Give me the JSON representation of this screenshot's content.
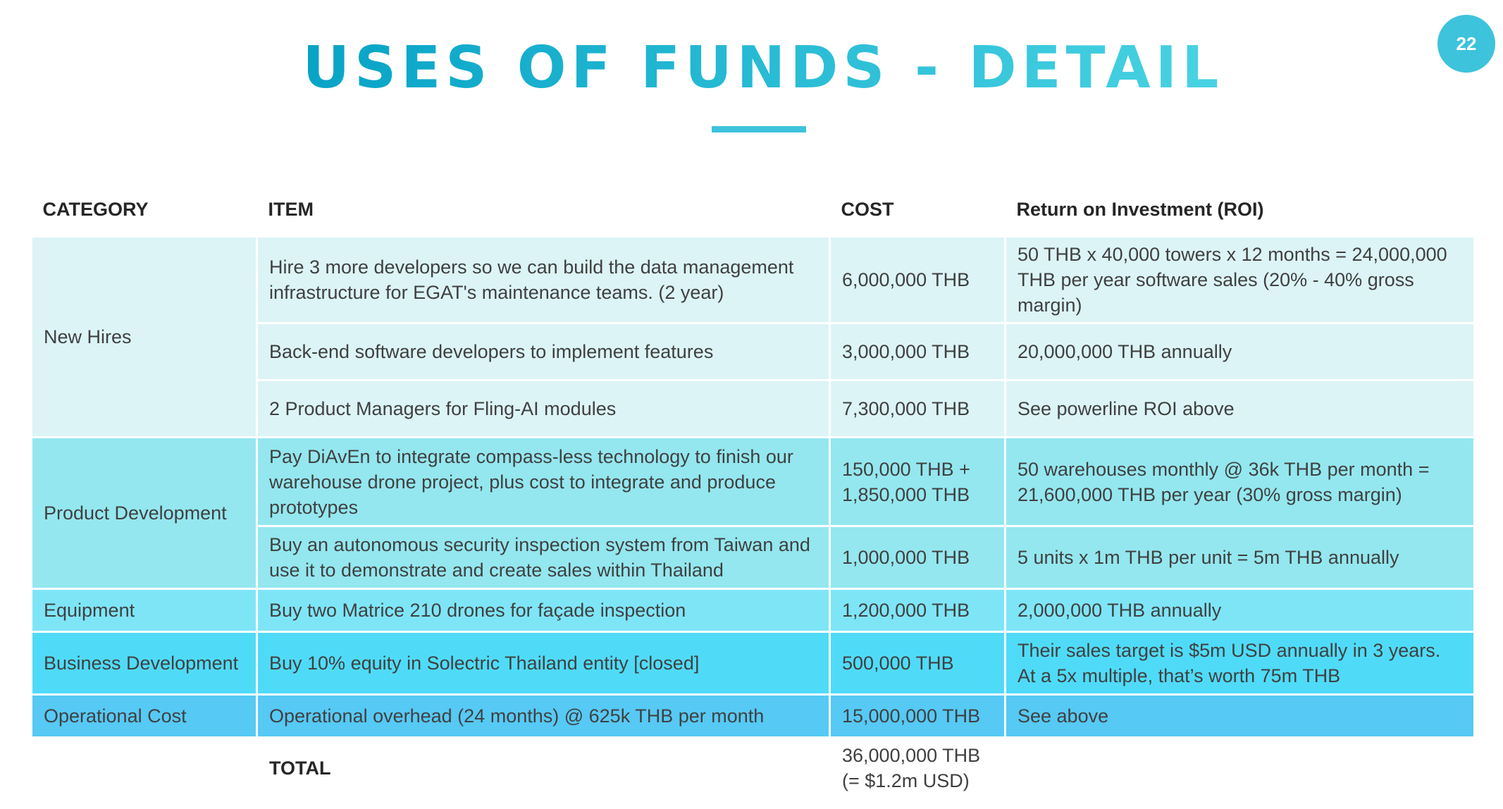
{
  "page_number": "22",
  "title": "USES OF FUNDS - DETAIL",
  "headers": {
    "category": "CATEGORY",
    "item": "ITEM",
    "cost": "COST",
    "roi": "Return on Investment (ROI)"
  },
  "categories": {
    "new_hires": "New Hires",
    "product_development": "Product Development",
    "equipment": "Equipment",
    "business_development": "Business Development",
    "operational_cost": "Operational Cost"
  },
  "rows": [
    {
      "item": "Hire 3 more developers so we can build the data management infrastructure for EGAT's maintenance teams. (2 year)",
      "cost": "6,000,000 THB",
      "roi": "50 THB x 40,000 towers x 12 months = 24,000,000 THB per year software sales (20% - 40% gross margin)"
    },
    {
      "item": "Back-end software developers to implement features",
      "cost": "3,000,000 THB",
      "roi": "20,000,000 THB annually"
    },
    {
      "item": "2 Product Managers for Fling-AI modules",
      "cost": "7,300,000 THB",
      "roi": "See powerline ROI above"
    },
    {
      "item": "Pay DiAvEn to integrate compass-less technology to finish our warehouse drone project, plus cost to integrate and produce prototypes",
      "cost_line1": "150,000 THB +",
      "cost_line2": "1,850,000 THB",
      "roi": "50 warehouses monthly @ 36k THB per month = 21,600,000 THB per year (30% gross margin)"
    },
    {
      "item": "Buy an autonomous security inspection system from Taiwan and use it to demonstrate and create sales within Thailand",
      "cost": "1,000,000 THB",
      "roi": "5 units x 1m THB per unit = 5m THB annually"
    },
    {
      "item": "Buy two Matrice 210 drones for façade inspection",
      "cost": "1,200,000 THB",
      "roi": "2,000,000 THB annually"
    },
    {
      "item": "Buy 10% equity in Solectric Thailand entity [closed]",
      "cost": "500,000 THB",
      "roi_line1": "Their sales target is $5m USD annually in 3 years.",
      "roi_line2": "At a 5x multiple, that’s worth 75m THB"
    },
    {
      "item": "Operational overhead (24 months) @ 625k THB per month",
      "cost": "15,000,000 THB",
      "roi": "See above"
    }
  ],
  "total": {
    "label": "TOTAL",
    "cost_line1": "36,000,000 THB",
    "cost_line2": "(= $1.2m USD)"
  }
}
